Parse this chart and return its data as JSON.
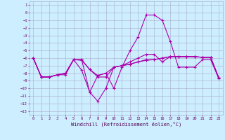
{
  "xlabel": "Windchill (Refroidissement éolien,°C)",
  "background_color": "#cceeff",
  "grid_color": "#aaaacc",
  "line_color": "#aa00aa",
  "xlim": [
    -0.5,
    23.5
  ],
  "ylim": [
    -13.5,
    1.5
  ],
  "yticks": [
    1,
    0,
    -1,
    -2,
    -3,
    -4,
    -5,
    -6,
    -7,
    -8,
    -9,
    -10,
    -11,
    -12,
    -13
  ],
  "xticks": [
    0,
    1,
    2,
    3,
    4,
    5,
    6,
    7,
    8,
    9,
    10,
    11,
    12,
    13,
    14,
    15,
    16,
    17,
    18,
    19,
    20,
    21,
    22,
    23
  ],
  "line1": [
    [
      0,
      -6.0
    ],
    [
      1,
      -8.5
    ],
    [
      2,
      -8.5
    ],
    [
      3,
      -8.2
    ],
    [
      4,
      -8.2
    ],
    [
      5,
      -6.2
    ],
    [
      6,
      -6.2
    ],
    [
      7,
      -7.5
    ],
    [
      8,
      -8.5
    ],
    [
      9,
      -8.5
    ],
    [
      10,
      -7.2
    ],
    [
      11,
      -7.0
    ],
    [
      12,
      -6.8
    ],
    [
      13,
      -6.5
    ],
    [
      14,
      -6.3
    ],
    [
      15,
      -6.2
    ],
    [
      16,
      -6.0
    ],
    [
      17,
      -5.8
    ],
    [
      18,
      -5.8
    ],
    [
      19,
      -5.8
    ],
    [
      20,
      -5.8
    ],
    [
      21,
      -5.9
    ],
    [
      22,
      -5.9
    ],
    [
      23,
      -8.6
    ]
  ],
  "line2": [
    [
      0,
      -6.0
    ],
    [
      1,
      -8.5
    ],
    [
      2,
      -8.5
    ],
    [
      3,
      -8.2
    ],
    [
      4,
      -8.0
    ],
    [
      5,
      -6.2
    ],
    [
      6,
      -7.6
    ],
    [
      7,
      -10.5
    ],
    [
      8,
      -8.3
    ],
    [
      9,
      -8.0
    ],
    [
      10,
      -10.0
    ],
    [
      11,
      -7.2
    ],
    [
      12,
      -5.0
    ],
    [
      13,
      -3.2
    ],
    [
      14,
      -0.3
    ],
    [
      15,
      -0.3
    ],
    [
      16,
      -1.0
    ],
    [
      17,
      -3.8
    ],
    [
      18,
      -7.2
    ],
    [
      19,
      -7.2
    ],
    [
      20,
      -7.2
    ],
    [
      21,
      -6.2
    ],
    [
      22,
      -6.2
    ],
    [
      23,
      -8.7
    ]
  ],
  "line3": [
    [
      0,
      -6.0
    ],
    [
      1,
      -8.5
    ],
    [
      2,
      -8.5
    ],
    [
      3,
      -8.2
    ],
    [
      4,
      -8.0
    ],
    [
      5,
      -6.2
    ],
    [
      6,
      -6.2
    ],
    [
      7,
      -10.5
    ],
    [
      8,
      -11.7
    ],
    [
      9,
      -10.0
    ],
    [
      10,
      -7.2
    ],
    [
      11,
      -7.0
    ],
    [
      12,
      -6.5
    ],
    [
      13,
      -6.0
    ],
    [
      14,
      -5.5
    ],
    [
      15,
      -5.5
    ],
    [
      16,
      -6.5
    ],
    [
      17,
      -5.8
    ],
    [
      18,
      -5.8
    ],
    [
      19,
      -5.8
    ],
    [
      20,
      -5.8
    ],
    [
      21,
      -5.9
    ],
    [
      22,
      -5.9
    ],
    [
      23,
      -8.6
    ]
  ],
  "line4": [
    [
      0,
      -6.0
    ],
    [
      1,
      -8.5
    ],
    [
      2,
      -8.5
    ],
    [
      3,
      -8.2
    ],
    [
      4,
      -8.0
    ],
    [
      5,
      -6.2
    ],
    [
      6,
      -6.3
    ],
    [
      7,
      -7.5
    ],
    [
      8,
      -8.3
    ],
    [
      9,
      -8.0
    ],
    [
      10,
      -7.2
    ],
    [
      11,
      -7.0
    ],
    [
      12,
      -6.8
    ],
    [
      13,
      -6.5
    ],
    [
      14,
      -6.2
    ],
    [
      15,
      -6.2
    ],
    [
      16,
      -6.0
    ],
    [
      17,
      -5.8
    ],
    [
      18,
      -5.8
    ],
    [
      19,
      -5.8
    ],
    [
      20,
      -5.8
    ],
    [
      21,
      -5.9
    ],
    [
      22,
      -5.9
    ],
    [
      23,
      -8.6
    ]
  ]
}
